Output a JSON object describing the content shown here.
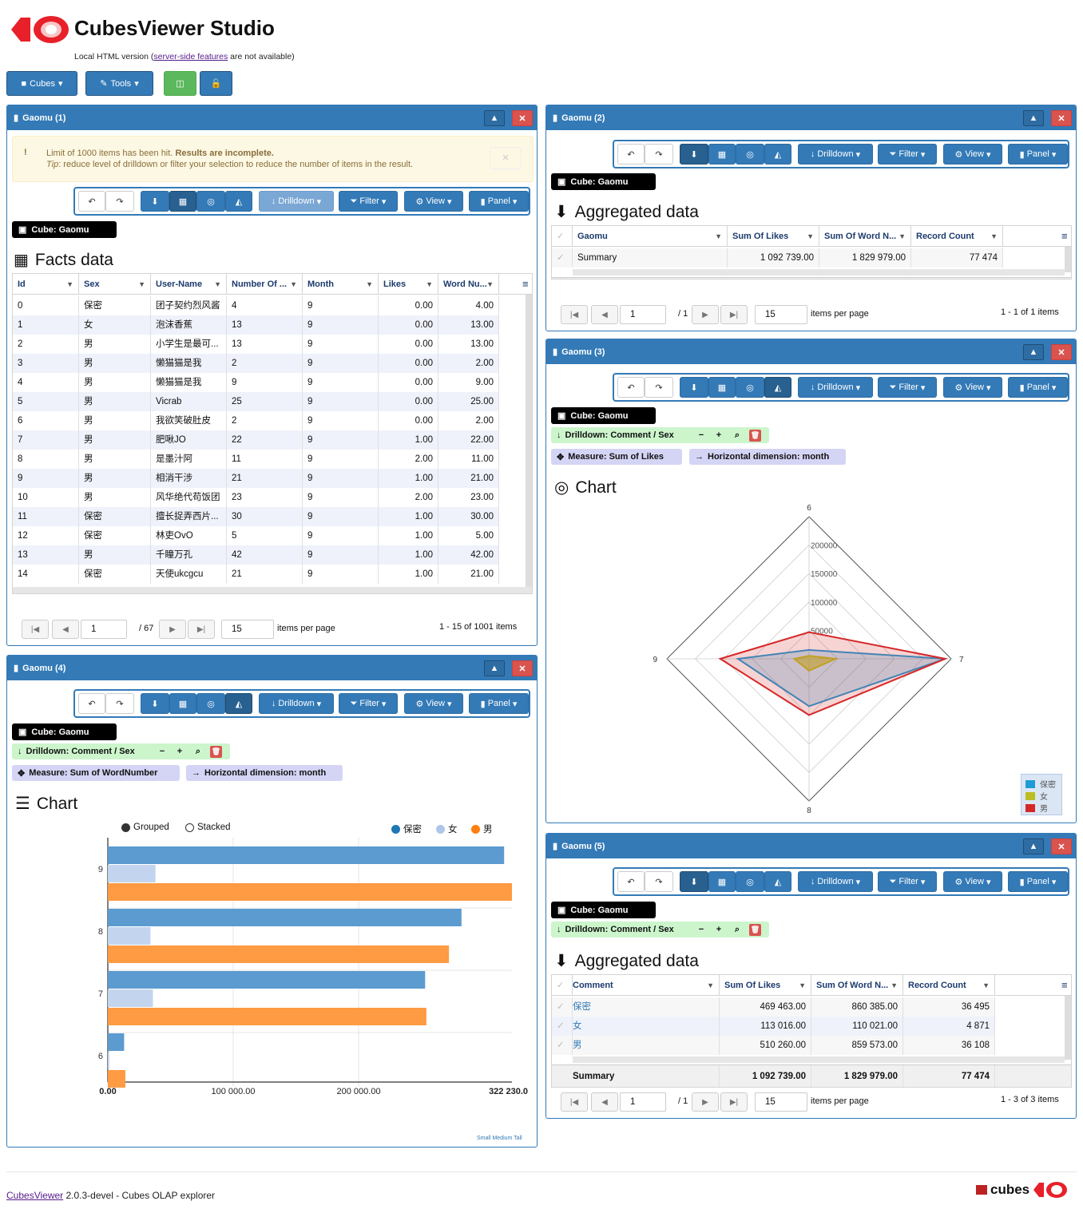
{
  "app": {
    "title": "CubesViewer Studio",
    "subtitle_pre": "Local HTML version (",
    "subtitle_link": "server-side features",
    "subtitle_post": " are not available)"
  },
  "toolbar": {
    "cubes_label": "Cubes",
    "tools_label": "Tools"
  },
  "colors": {
    "primary": "#337ab7",
    "danger": "#d9534f",
    "success": "#5cb85c",
    "series": [
      "#1f77b4",
      "#aec7e8",
      "#ff7f0e"
    ],
    "radar": [
      "#1f77b4",
      "#bcbd22",
      "#d62728"
    ]
  },
  "view_toolbar": {
    "drilldown": "Drilldown",
    "filter": "Filter",
    "view": "View",
    "panel": "Panel"
  },
  "cube_label": "Cube: Gaomu",
  "pager": {
    "items_per_page": "items per page",
    "per_page_value": "15"
  },
  "panel1": {
    "title": "Gaomu (1)",
    "alert": {
      "text1": "Limit of 1000 items has been hit. ",
      "text1b": "Results are incomplete.",
      "tip": "Tip",
      "text2": ": reduce level of drilldown or filter your selection to reduce the number of items in the result."
    },
    "section": "Facts data",
    "columns": [
      "Id",
      "Sex",
      "User-Name",
      "Number Of ...",
      "Month",
      "Likes",
      "Word Nu..."
    ],
    "rows": [
      [
        "0",
        "保密",
        "团子契约烈风酱",
        "4",
        "9",
        "0.00",
        "4.00"
      ],
      [
        "1",
        "女",
        "泡沫香蕉",
        "13",
        "9",
        "0.00",
        "13.00"
      ],
      [
        "2",
        "男",
        "小学生是最可...",
        "13",
        "9",
        "0.00",
        "13.00"
      ],
      [
        "3",
        "男",
        "懒猫猫是我",
        "2",
        "9",
        "0.00",
        "2.00"
      ],
      [
        "4",
        "男",
        "懒猫猫是我",
        "9",
        "9",
        "0.00",
        "9.00"
      ],
      [
        "5",
        "男",
        "Vicrab",
        "25",
        "9",
        "0.00",
        "25.00"
      ],
      [
        "6",
        "男",
        "我欲笑破肚皮",
        "2",
        "9",
        "0.00",
        "2.00"
      ],
      [
        "7",
        "男",
        "肥啾JO",
        "22",
        "9",
        "1.00",
        "22.00"
      ],
      [
        "8",
        "男",
        "是墨汁阿",
        "11",
        "9",
        "2.00",
        "11.00"
      ],
      [
        "9",
        "男",
        "相消干涉",
        "21",
        "9",
        "1.00",
        "21.00"
      ],
      [
        "10",
        "男",
        "风华绝代苟饭团",
        "23",
        "9",
        "2.00",
        "23.00"
      ],
      [
        "11",
        "保密",
        "擅长捉弄西片...",
        "30",
        "9",
        "1.00",
        "30.00"
      ],
      [
        "12",
        "保密",
        "林吏OvO",
        "5",
        "9",
        "1.00",
        "5.00"
      ],
      [
        "13",
        "男",
        "千瞳万孔",
        "42",
        "9",
        "1.00",
        "42.00"
      ],
      [
        "14",
        "保密",
        "天使ukcgcu",
        "21",
        "9",
        "1.00",
        "21.00"
      ]
    ],
    "page": "1",
    "pages": "/ 67",
    "summary": "1 - 15 of 1001 items"
  },
  "panel2": {
    "title": "Gaomu (2)",
    "section": "Aggregated data",
    "columns": [
      "Gaomu",
      "Sum Of Likes",
      "Sum Of Word N...",
      "Record Count"
    ],
    "rows": [
      [
        "Summary",
        "1 092 739.00",
        "1 829 979.00",
        "77 474"
      ]
    ],
    "footer": [
      "",
      "1 092 739.00",
      "1 829 979.00",
      "77 474"
    ],
    "page": "1",
    "pages": "/ 1",
    "summary": "1 - 1 of 1 items"
  },
  "panel3": {
    "title": "Gaomu (3)",
    "drilldown": "Drilldown: Comment / Sex",
    "measure": "Measure: Sum of Likes",
    "horizontal": "Horizontal dimension: month",
    "section": "Chart"
  },
  "panel4": {
    "title": "Gaomu (4)",
    "drilldown": "Drilldown: Comment / Sex",
    "measure": "Measure: Sum of WordNumber",
    "horizontal": "Horizontal dimension: month",
    "section": "Chart",
    "grouped": "Grouped",
    "stacked": "Stacked",
    "sizes": "Small Medium Tall"
  },
  "panel5": {
    "title": "Gaomu (5)",
    "drilldown": "Drilldown: Comment / Sex",
    "section": "Aggregated data",
    "columns": [
      "Comment",
      "Sum Of Likes",
      "Sum Of Word N...",
      "Record Count"
    ],
    "rows": [
      [
        "保密",
        "469 463.00",
        "860 385.00",
        "36 495"
      ],
      [
        "女",
        "113 016.00",
        "110 021.00",
        "4 871"
      ],
      [
        "男",
        "510 260.00",
        "859 573.00",
        "36 108"
      ]
    ],
    "footer": [
      "Summary",
      "1 092 739.00",
      "1 829 979.00",
      "77 474"
    ],
    "page": "1",
    "pages": "/ 1",
    "summary": "1 - 3 of 3 items"
  },
  "chart_data": [
    {
      "type": "radar",
      "title": "Measure: Sum of Likes",
      "axes": [
        "6",
        "7",
        "8",
        "9"
      ],
      "radial_ticks": [
        "50000",
        "100000",
        "150000",
        "200000"
      ],
      "rmax": 240000,
      "series": [
        {
          "name": "保密",
          "values": [
            15000,
            230000,
            80000,
            120000
          ]
        },
        {
          "name": "女",
          "values": [
            5000,
            45000,
            20000,
            25000
          ]
        },
        {
          "name": "男",
          "values": [
            45000,
            230000,
            95000,
            150000
          ]
        }
      ]
    },
    {
      "type": "bar",
      "orientation": "horizontal",
      "title": "Measure: Sum of WordNumber",
      "categories": [
        "9",
        "8",
        "7",
        "6"
      ],
      "xlim": [
        0,
        322230
      ],
      "xticks": [
        "0.00",
        "100 000.00",
        "200 000.00",
        "322 230.0"
      ],
      "series": [
        {
          "name": "保密",
          "values": [
            316000,
            282000,
            253000,
            13000
          ]
        },
        {
          "name": "女",
          "values": [
            38000,
            34000,
            36000,
            1200
          ]
        },
        {
          "name": "男",
          "values": [
            322230,
            272000,
            254000,
            14000
          ]
        }
      ]
    }
  ],
  "footer": {
    "link": "CubesViewer",
    "text": " 2.0.3-devel - Cubes OLAP explorer",
    "logo": "cubes"
  }
}
